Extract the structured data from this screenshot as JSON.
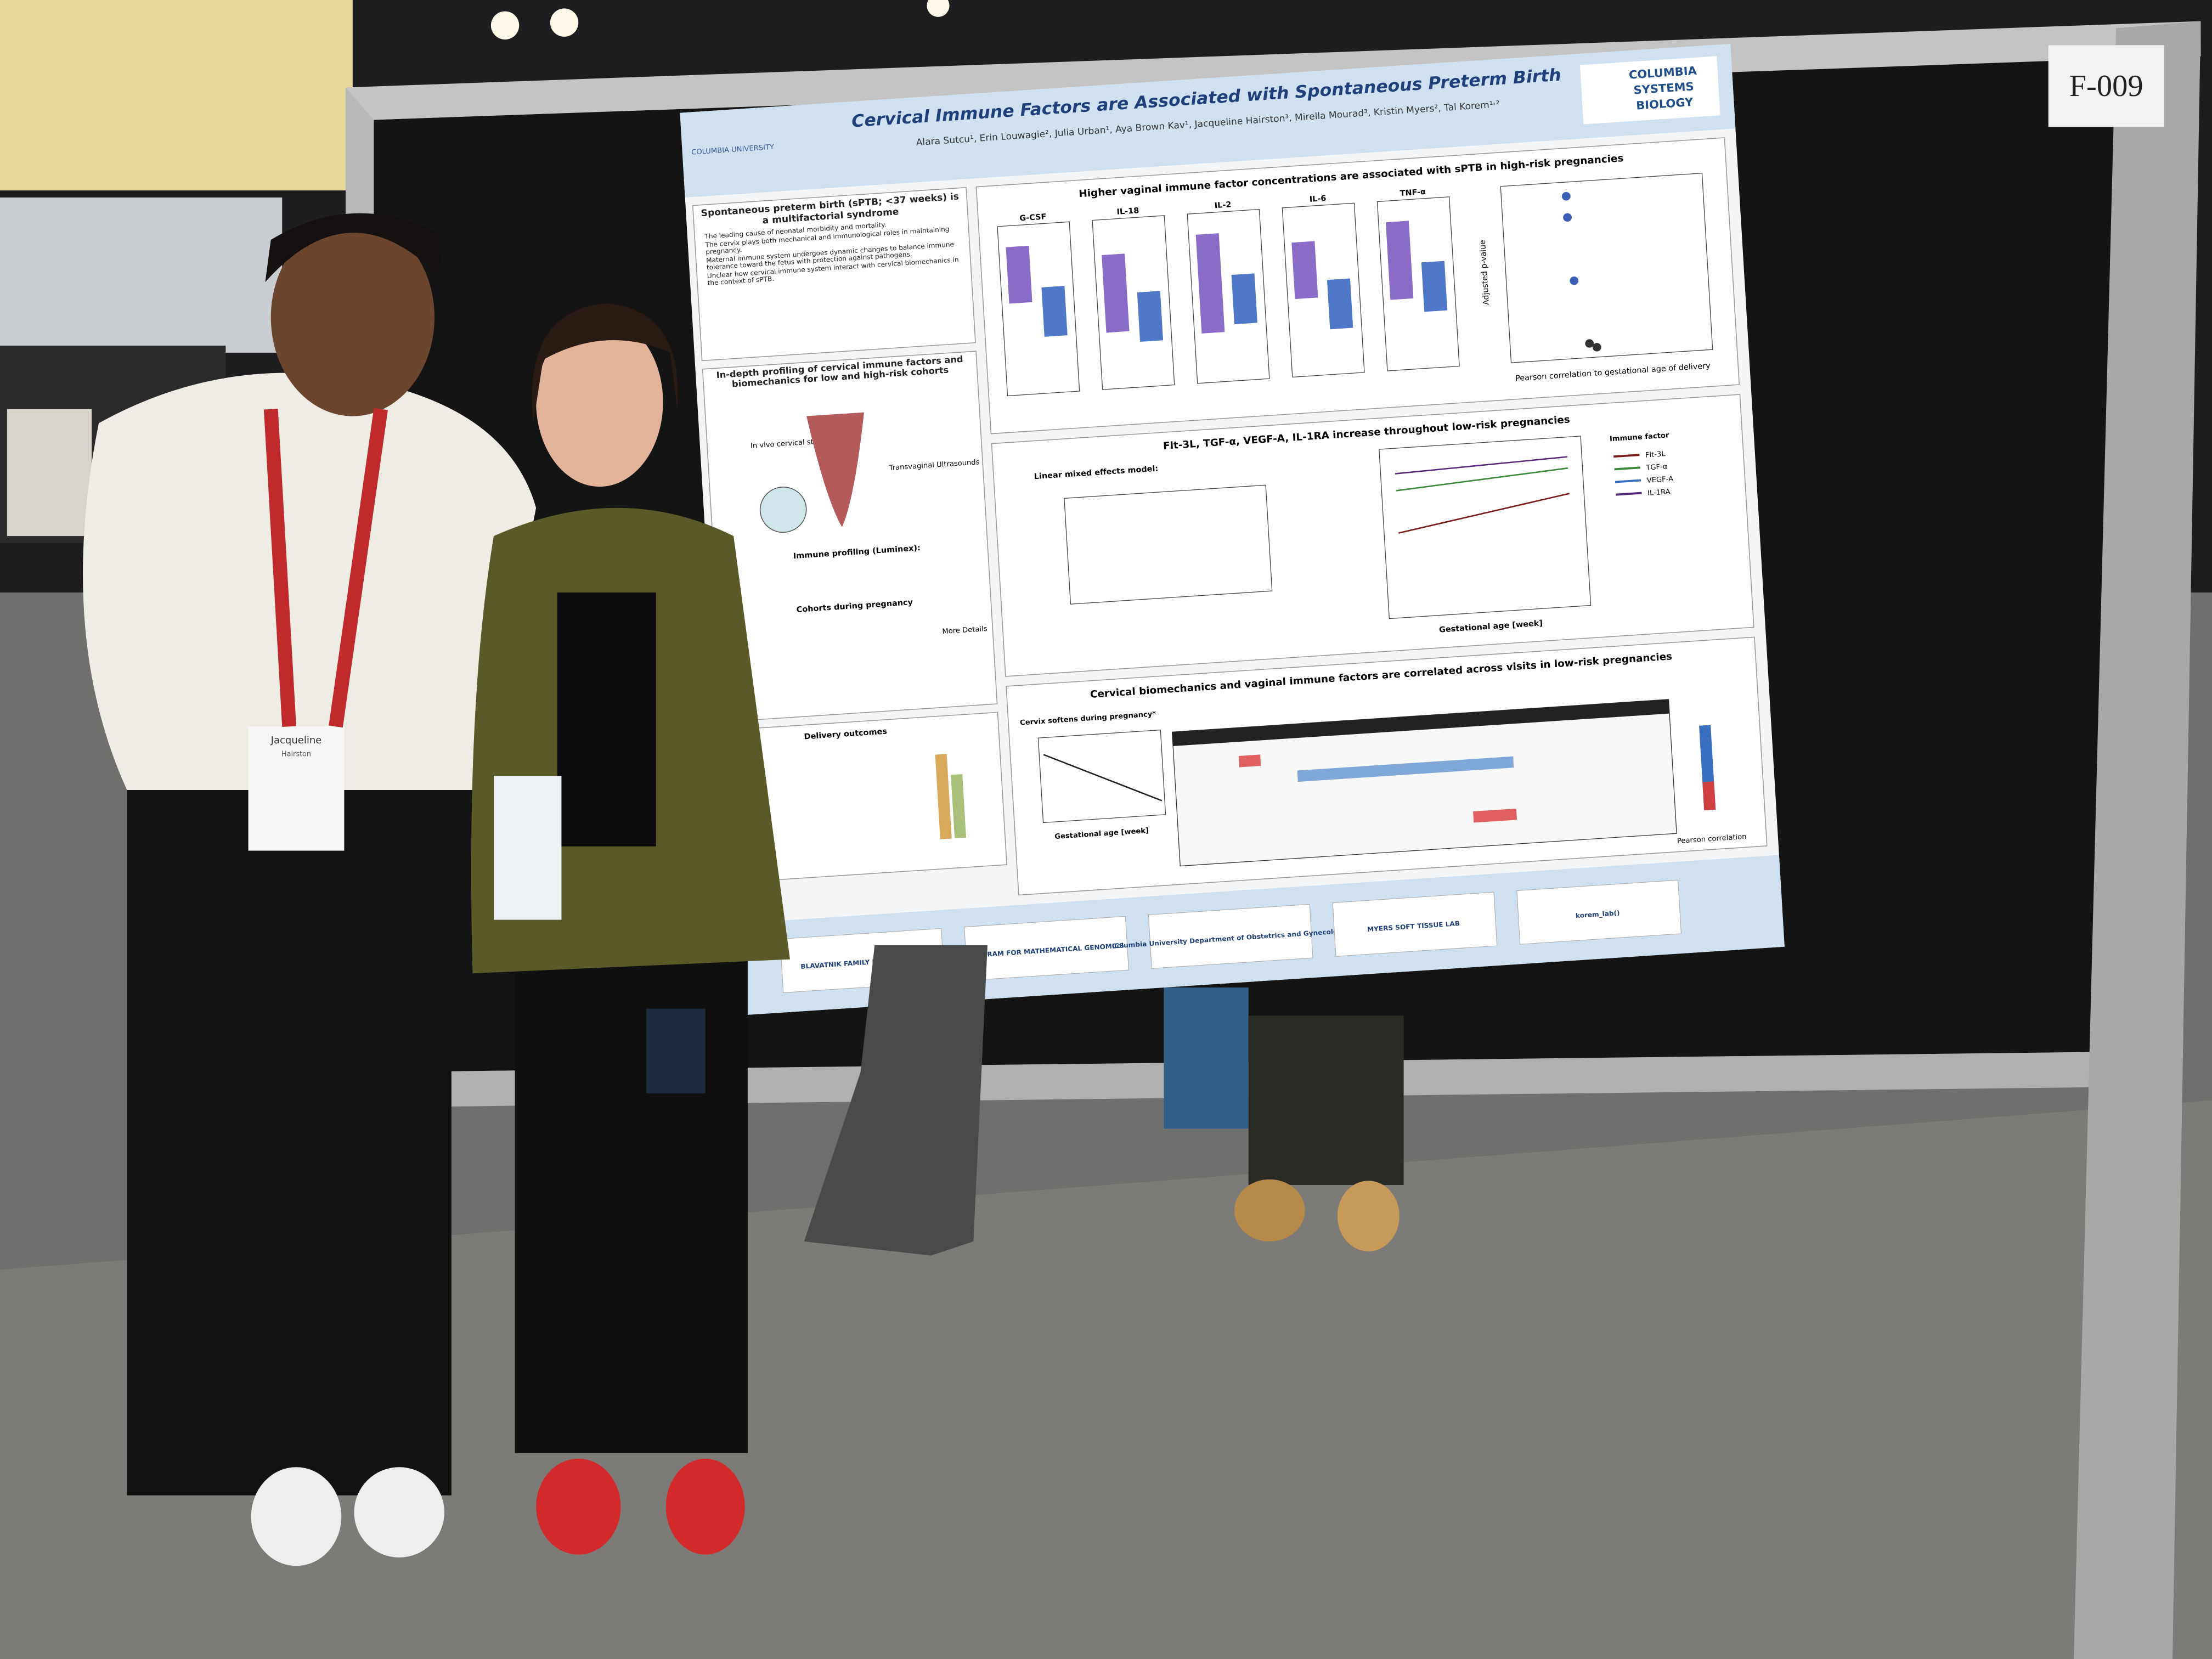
{
  "sign": "F-009",
  "poster": {
    "title": "Cervical Immune Factors are Associated with Spontaneous Preterm Birth",
    "authors": "Alara Sutcu¹, Erin Louwagie², Julia Urban¹, Aya Brown Kav¹, Jacqueline Hairston³, Mirella Mourad³, Kristin Myers², Tal Korem¹˒²",
    "logo_left": "COLUMBIA UNIVERSITY",
    "logo_right": [
      "COLUMBIA",
      "SYSTEMS",
      "BIOLOGY"
    ],
    "intro": {
      "heading": "Spontaneous preterm birth (sPTB; <37 weeks) is a multifactorial syndrome",
      "bullets": [
        "The leading cause of neonatal morbidity and mortality.",
        "The cervix plays both mechanical and immunological roles in maintaining pregnancy.",
        "Maternal immune system undergoes dynamic changes to balance immune tolerance toward the fetus with protection against pathogens.",
        "Unclear how cervical immune system interact with cervical biomechanics in the context of sPTB."
      ]
    },
    "profiling": {
      "heading": "In-depth profiling of cervical immune factors and biomechanics for low and high-risk cohorts",
      "labels": [
        "In vivo cervical stiffness",
        "Transvaginal Ultrasounds"
      ],
      "immune": "Immune profiling (Luminex):",
      "cohorts": "Cohorts during pregnancy",
      "details": "More Details",
      "outcomes": "Delivery outcomes"
    },
    "panels": [
      {
        "heading": "Higher vaginal immune factor concentrations are associated with sPTB in high-risk pregnancies",
        "factors": [
          "G-CSF",
          "IL-18",
          "IL-2",
          "IL-6",
          "TNF-α"
        ],
        "x_label": "Pearson correlation to gestational age of delivery",
        "y_label": "Adjusted p-value"
      },
      {
        "heading": "Flt-3L, TGF-α, VEGF-A, IL-1RA increase throughout low-risk pregnancies",
        "model": "Linear mixed effects model:",
        "x_label": "Gestational age [week]",
        "legend_title": "Immune factor",
        "legend": [
          "Flt-3L",
          "TGF-α",
          "VEGF-A",
          "IL-1RA"
        ]
      },
      {
        "heading": "Cervical biomechanics and vaginal immune factors are correlated across visits in low-risk pregnancies",
        "sub": "Cervix softens during pregnancy*",
        "x_label": "Gestational age [week]",
        "legend": "Pearson correlation"
      }
    ],
    "sponsors": [
      "BLAVATNIK FAMILY FOUNDATION",
      "PROGRAM FOR MATHEMATICAL GENOMICS",
      "Columbia University Department of Obstetrics and Gynecology",
      "MYERS SOFT TISSUE LAB",
      "korem_lab()"
    ]
  },
  "badge": {
    "first": "Jacqueline",
    "last": "Hairston"
  }
}
